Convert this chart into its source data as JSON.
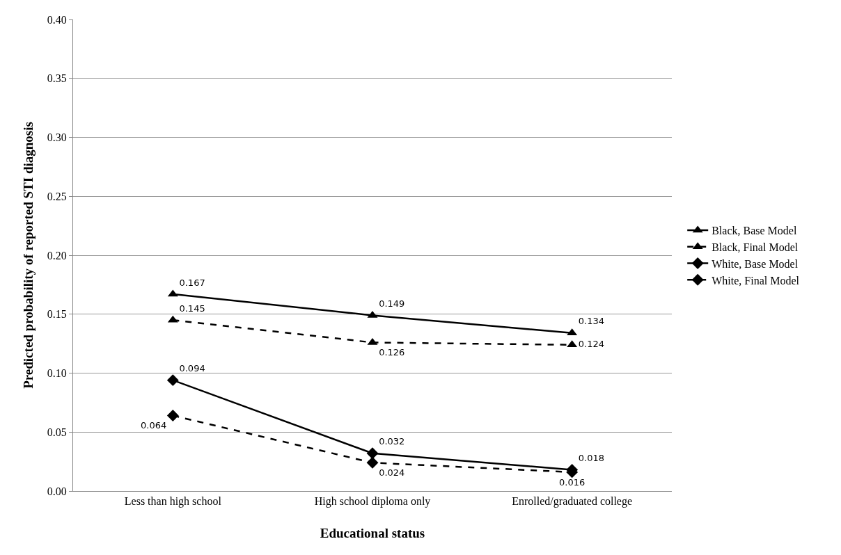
{
  "chart_data": {
    "type": "line",
    "xlabel": "Educational status",
    "ylabel": "Predicted probability of reported STI diagnosis",
    "categories": [
      "Less than high school",
      "High school diploma only",
      "Enrolled/graduated college"
    ],
    "series": [
      {
        "name": "Black, Base Model",
        "color": "#000000",
        "values": [
          0.167,
          0.149,
          0.134
        ],
        "marker": "triangle",
        "line_style": "solid"
      },
      {
        "name": "Black, Final Model",
        "color": "#000000",
        "values": [
          0.145,
          0.126,
          0.124
        ],
        "marker": "triangle",
        "line_style": "dashed"
      },
      {
        "name": "White, Base Model",
        "color": "#000000",
        "values": [
          0.094,
          0.032,
          0.018
        ],
        "marker": "diamond",
        "line_style": "solid"
      },
      {
        "name": "White, Final Model",
        "color": "#000000",
        "values": [
          0.064,
          0.024,
          0.016
        ],
        "marker": "diamond",
        "line_style": "dashed"
      }
    ],
    "ylim": [
      0,
      0.4
    ],
    "yticks": [
      {
        "value": 0,
        "label": "0.00"
      },
      {
        "value": 0.05,
        "label": "0.05"
      },
      {
        "value": 0.1,
        "label": "0.10"
      },
      {
        "value": 0.15,
        "label": "0.15"
      },
      {
        "value": 0.2,
        "label": "0.20"
      },
      {
        "value": 0.25,
        "label": "0.25"
      },
      {
        "value": 0.3,
        "label": "0.30"
      },
      {
        "value": 0.35,
        "label": "0.35"
      },
      {
        "value": 0.4,
        "label": "0.40"
      }
    ],
    "grid": "y",
    "legend": "right",
    "data_labels": true
  }
}
